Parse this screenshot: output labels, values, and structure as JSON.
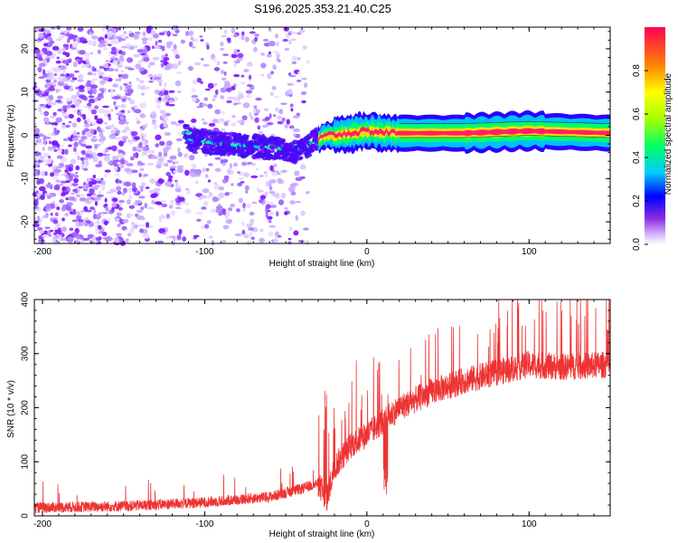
{
  "chart_data": [
    {
      "type": "heatmap",
      "title": "S196.2025.353.21.40.C25",
      "xlabel": "Height of straight line (km)",
      "ylabel": "Frequency (Hz)",
      "xlim": [
        -205,
        150
      ],
      "ylim": [
        -25,
        25
      ],
      "xticks": [
        -200,
        -100,
        0,
        100
      ],
      "yticks": [
        -20,
        -10,
        0,
        10,
        20
      ],
      "colorbar": {
        "label": "Normalized spectral amplitude",
        "range": [
          0,
          1
        ],
        "ticks": [
          0.0,
          0.2,
          0.4,
          0.6,
          0.8
        ]
      },
      "ridge": {
        "description_points_x": [
          -110,
          -90,
          -70,
          -55,
          -45,
          -35,
          -25,
          -10,
          0,
          20,
          60,
          100,
          150
        ],
        "description_points_y": [
          -1,
          -2,
          -2.5,
          -3,
          -4,
          -2,
          0,
          0.5,
          1,
          0.5,
          0.5,
          1,
          0.5
        ]
      }
    },
    {
      "type": "line",
      "xlabel": "Height of straight line (km)",
      "ylabel": "SNR (10 * v/v)",
      "xlim": [
        -205,
        150
      ],
      "ylim": [
        0,
        400
      ],
      "xticks": [
        -200,
        -100,
        0,
        100
      ],
      "yticks": [
        0,
        100,
        200,
        300,
        400
      ],
      "series_color": "#ee3333",
      "trend": {
        "x": [
          -205,
          -150,
          -100,
          -60,
          -40,
          -30,
          -25,
          -20,
          -10,
          0,
          20,
          40,
          60,
          80,
          100,
          120,
          150
        ],
        "y": [
          15,
          18,
          25,
          35,
          50,
          60,
          30,
          90,
          130,
          150,
          200,
          230,
          250,
          265,
          280,
          275,
          280
        ]
      }
    }
  ]
}
